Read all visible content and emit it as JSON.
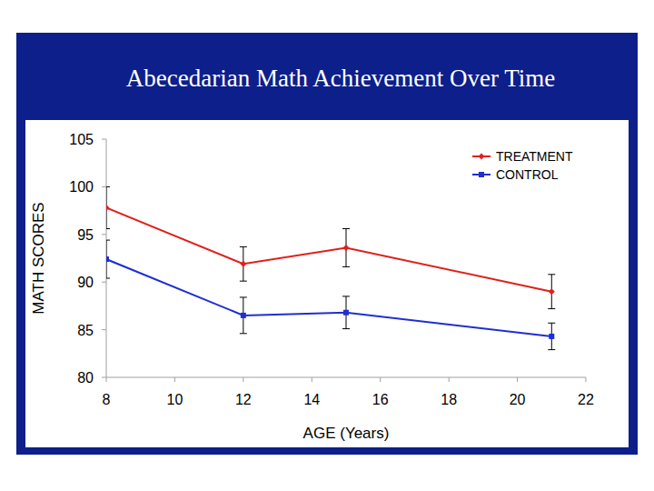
{
  "chart_data": {
    "type": "line",
    "title": "Abecedarian Math Achievement Over Time",
    "x_label": "AGE (Years)",
    "y_label": "MATH SCORES",
    "x": [
      8,
      12,
      15,
      21
    ],
    "series": [
      {
        "name": "TREATMENT",
        "color": "#e0201b",
        "marker": "diamond",
        "values": [
          97.8,
          91.9,
          93.6,
          89.0
        ],
        "errors": [
          2.2,
          1.8,
          2.0,
          1.8
        ]
      },
      {
        "name": "CONTROL",
        "color": "#1f2fd1",
        "marker": "square",
        "values": [
          92.4,
          86.5,
          86.8,
          84.3
        ],
        "errors": [
          2.0,
          1.9,
          1.7,
          1.4
        ]
      }
    ],
    "xlim": [
      8,
      22
    ],
    "xticks": [
      8,
      10,
      12,
      14,
      16,
      18,
      20,
      22
    ],
    "ylim": [
      80,
      105
    ],
    "yticks": [
      80,
      85,
      90,
      95,
      100,
      105
    ],
    "grid": false,
    "legend": "upper right"
  }
}
